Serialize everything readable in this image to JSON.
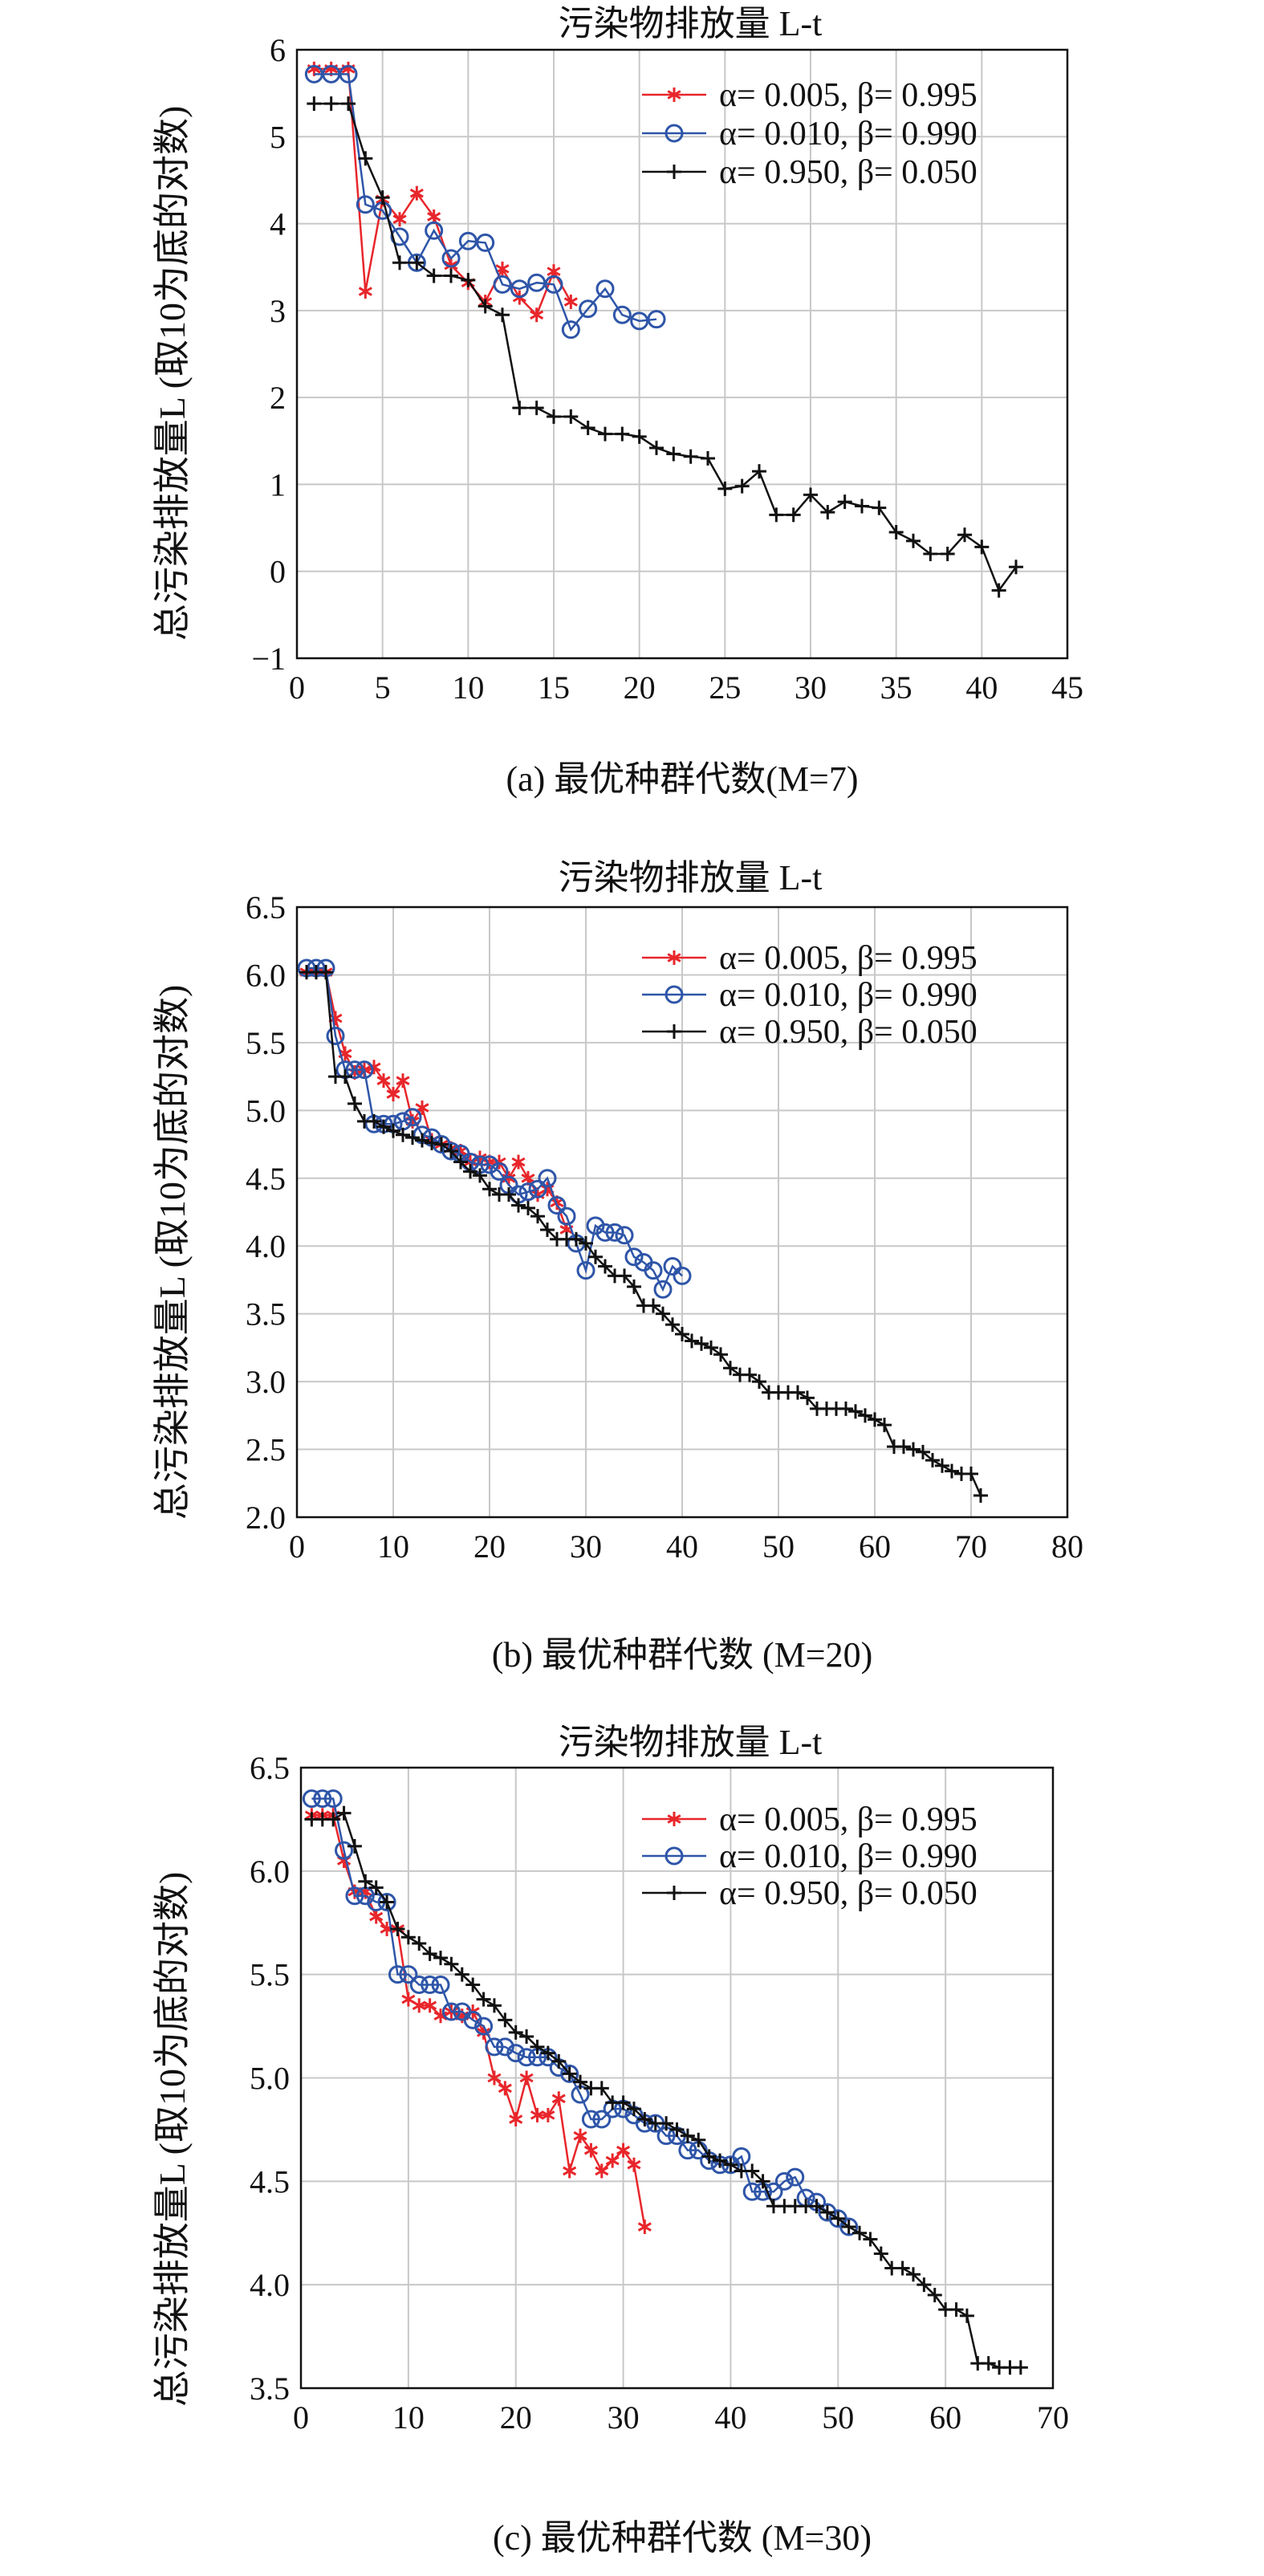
{
  "chart_data": [
    {
      "type": "line",
      "title": "污染物排放量 L-t",
      "caption": "(a) 最优种群代数(M=7)",
      "ylabel": "总污染排放量L (取10为底的对数)",
      "xlim": [
        0,
        45
      ],
      "ylim": [
        -1,
        6
      ],
      "xticks": [
        0,
        5,
        10,
        15,
        20,
        25,
        30,
        35,
        40,
        45
      ],
      "yticks": [
        -1,
        0,
        1,
        2,
        3,
        4,
        5,
        6
      ],
      "xtick_labels": [
        "0",
        "5",
        "10",
        "15",
        "20",
        "25",
        "30",
        "35",
        "40",
        "45"
      ],
      "ytick_labels": [
        "−1",
        "0",
        "1",
        "2",
        "3",
        "4",
        "5",
        "6"
      ],
      "series": [
        {
          "name": "α= 0.005, β= 0.995",
          "label": "α= 0.005, β= 0.995",
          "color": "#e8262b",
          "marker": "star",
          "x": [
            1,
            2,
            3,
            4,
            5,
            6,
            7,
            8,
            9,
            10,
            11,
            12,
            13,
            14,
            15,
            16
          ],
          "y": [
            5.78,
            5.78,
            5.78,
            3.22,
            4.28,
            4.05,
            4.35,
            4.08,
            3.52,
            3.32,
            3.1,
            3.48,
            3.15,
            2.95,
            3.45,
            3.1
          ]
        },
        {
          "name": "α= 0.010, β= 0.990",
          "label": "α= 0.010, β= 0.990",
          "color": "#2e55a8",
          "marker": "circle",
          "x": [
            1,
            2,
            3,
            4,
            5,
            6,
            7,
            8,
            9,
            10,
            11,
            12,
            13,
            14,
            15,
            16,
            17,
            18,
            19,
            20,
            21
          ],
          "y": [
            5.72,
            5.72,
            5.72,
            4.22,
            4.15,
            3.85,
            3.55,
            3.92,
            3.6,
            3.8,
            3.78,
            3.3,
            3.25,
            3.32,
            3.3,
            2.78,
            3.02,
            3.25,
            2.95,
            2.88,
            2.9
          ]
        },
        {
          "name": "α= 0.950, β= 0.050",
          "label": "α= 0.950, β= 0.050",
          "color": "#111111",
          "marker": "plus",
          "x": [
            1,
            2,
            3,
            4,
            5,
            6,
            7,
            8,
            9,
            10,
            11,
            12,
            13,
            14,
            15,
            16,
            17,
            18,
            19,
            20,
            21,
            22,
            23,
            24,
            25,
            26,
            27,
            28,
            29,
            30,
            31,
            32,
            33,
            34,
            35,
            36,
            37,
            38,
            39,
            40,
            41,
            42
          ],
          "y": [
            5.38,
            5.38,
            5.38,
            4.75,
            4.3,
            3.55,
            3.55,
            3.4,
            3.4,
            3.35,
            3.05,
            2.95,
            1.88,
            1.88,
            1.78,
            1.78,
            1.65,
            1.58,
            1.58,
            1.55,
            1.42,
            1.35,
            1.32,
            1.3,
            0.95,
            0.98,
            1.15,
            0.65,
            0.65,
            0.88,
            0.68,
            0.8,
            0.75,
            0.73,
            0.45,
            0.35,
            0.2,
            0.2,
            0.42,
            0.28,
            -0.22,
            0.05
          ]
        }
      ]
    },
    {
      "type": "line",
      "title": "污染物排放量 L-t",
      "caption": "(b) 最优种群代数 (M=20)",
      "ylabel": "总污染排放量L (取10为底的对数)",
      "xlim": [
        0,
        80
      ],
      "ylim": [
        2,
        6.5
      ],
      "xticks": [
        0,
        10,
        20,
        30,
        40,
        50,
        60,
        70,
        80
      ],
      "yticks": [
        2,
        2.5,
        3,
        3.5,
        4,
        4.5,
        5,
        5.5,
        6,
        6.5
      ],
      "xtick_labels": [
        "0",
        "10",
        "20",
        "30",
        "40",
        "50",
        "60",
        "70",
        "80"
      ],
      "ytick_labels": [
        "2.0",
        "2.5",
        "3.0",
        "3.5",
        "4.0",
        "4.5",
        "5.0",
        "5.5",
        "6.0",
        "6.5"
      ],
      "series": [
        {
          "name": "α= 0.005, β= 0.995",
          "label": "α= 0.005, β= 0.995",
          "color": "#e8262b",
          "marker": "star",
          "x": [
            1,
            2,
            3,
            4,
            5,
            6,
            7,
            8,
            9,
            10,
            11,
            12,
            13,
            14,
            15,
            16,
            17,
            18,
            19,
            20,
            21,
            22,
            23,
            24,
            25,
            26,
            27,
            28
          ],
          "y": [
            6.02,
            6.02,
            6.02,
            5.68,
            5.42,
            5.28,
            5.3,
            5.32,
            5.22,
            5.12,
            5.22,
            4.92,
            5.02,
            4.78,
            4.75,
            4.72,
            4.7,
            4.62,
            4.65,
            4.62,
            4.62,
            4.5,
            4.62,
            4.5,
            4.38,
            4.42,
            4.32,
            4.12
          ]
        },
        {
          "name": "α= 0.010, β= 0.990",
          "label": "α= 0.010, β= 0.990",
          "color": "#2e55a8",
          "marker": "circle",
          "x": [
            1,
            2,
            3,
            4,
            5,
            6,
            7,
            8,
            9,
            10,
            11,
            12,
            13,
            14,
            15,
            16,
            17,
            18,
            19,
            20,
            21,
            22,
            23,
            24,
            25,
            26,
            27,
            28,
            29,
            30,
            31,
            32,
            33,
            34,
            35,
            36,
            37,
            38,
            39,
            40
          ],
          "y": [
            6.05,
            6.05,
            6.05,
            5.55,
            5.3,
            5.3,
            5.3,
            4.9,
            4.9,
            4.9,
            4.92,
            4.95,
            4.82,
            4.8,
            4.75,
            4.7,
            4.68,
            4.62,
            4.6,
            4.6,
            4.55,
            4.45,
            4.38,
            4.4,
            4.42,
            4.5,
            4.3,
            4.22,
            4.02,
            3.82,
            4.15,
            4.1,
            4.1,
            4.08,
            3.92,
            3.88,
            3.82,
            3.68,
            3.85,
            3.78
          ]
        },
        {
          "name": "α= 0.950, β= 0.050",
          "label": "α= 0.950, β= 0.050",
          "color": "#111111",
          "marker": "plus",
          "x": [
            1,
            2,
            3,
            4,
            5,
            6,
            7,
            8,
            9,
            10,
            11,
            12,
            13,
            14,
            15,
            16,
            17,
            18,
            19,
            20,
            21,
            22,
            23,
            24,
            25,
            26,
            27,
            28,
            29,
            30,
            31,
            32,
            33,
            34,
            35,
            36,
            37,
            38,
            39,
            40,
            41,
            42,
            43,
            44,
            45,
            46,
            47,
            48,
            49,
            50,
            51,
            52,
            53,
            54,
            55,
            56,
            57,
            58,
            59,
            60,
            61,
            62,
            63,
            64,
            65,
            66,
            67,
            68,
            69,
            70,
            71
          ],
          "y": [
            6.02,
            6.02,
            6.02,
            5.25,
            5.25,
            5.05,
            4.92,
            4.92,
            4.88,
            4.85,
            4.82,
            4.8,
            4.78,
            4.76,
            4.75,
            4.7,
            4.62,
            4.55,
            4.52,
            4.42,
            4.38,
            4.38,
            4.3,
            4.28,
            4.22,
            4.12,
            4.05,
            4.05,
            4.05,
            4.02,
            3.92,
            3.85,
            3.78,
            3.78,
            3.7,
            3.56,
            3.56,
            3.5,
            3.42,
            3.35,
            3.3,
            3.28,
            3.25,
            3.2,
            3.1,
            3.05,
            3.05,
            3.0,
            2.92,
            2.92,
            2.92,
            2.92,
            2.88,
            2.8,
            2.8,
            2.8,
            2.8,
            2.78,
            2.75,
            2.72,
            2.68,
            2.52,
            2.52,
            2.5,
            2.48,
            2.42,
            2.38,
            2.34,
            2.32,
            2.32,
            2.16
          ]
        }
      ]
    },
    {
      "type": "line",
      "title": "污染物排放量 L-t",
      "caption": "(c) 最优种群代数 (M=30)",
      "ylabel": "总污染排放量L (取10为底的对数)",
      "xlim": [
        0,
        70
      ],
      "ylim": [
        3.5,
        6.5
      ],
      "xticks": [
        0,
        10,
        20,
        30,
        40,
        50,
        60,
        70
      ],
      "yticks": [
        3.5,
        4,
        4.5,
        5,
        5.5,
        6,
        6.5
      ],
      "xtick_labels": [
        "0",
        "10",
        "20",
        "30",
        "40",
        "50",
        "60",
        "70"
      ],
      "ytick_labels": [
        "3.5",
        "4.0",
        "4.5",
        "5.0",
        "5.5",
        "6.0",
        "6.5"
      ],
      "series": [
        {
          "name": "α= 0.005, β= 0.995",
          "label": "α= 0.005, β= 0.995",
          "color": "#e8262b",
          "marker": "star",
          "x": [
            1,
            2,
            3,
            4,
            5,
            6,
            7,
            8,
            9,
            10,
            11,
            12,
            13,
            14,
            15,
            16,
            17,
            18,
            19,
            20,
            21,
            22,
            23,
            24,
            25,
            26,
            27,
            28,
            29,
            30,
            31,
            32
          ],
          "y": [
            6.27,
            6.27,
            6.27,
            6.05,
            5.9,
            5.9,
            5.78,
            5.72,
            5.72,
            5.38,
            5.35,
            5.35,
            5.3,
            5.32,
            5.3,
            5.32,
            5.22,
            5.0,
            4.95,
            4.8,
            5.0,
            4.82,
            4.82,
            4.9,
            4.55,
            4.72,
            4.65,
            4.55,
            4.6,
            4.65,
            4.58,
            4.28
          ]
        },
        {
          "name": "α= 0.010, β= 0.990",
          "label": "α= 0.010, β= 0.990",
          "color": "#2e55a8",
          "marker": "circle",
          "x": [
            1,
            2,
            3,
            4,
            5,
            6,
            7,
            8,
            9,
            10,
            11,
            12,
            13,
            14,
            15,
            16,
            17,
            18,
            19,
            20,
            21,
            22,
            23,
            24,
            25,
            26,
            27,
            28,
            29,
            30,
            31,
            32,
            33,
            34,
            35,
            36,
            37,
            38,
            39,
            40,
            41,
            42,
            43,
            44,
            45,
            46,
            47,
            48,
            49,
            50,
            51
          ],
          "y": [
            6.35,
            6.35,
            6.35,
            6.1,
            5.88,
            5.88,
            5.85,
            5.85,
            5.5,
            5.5,
            5.45,
            5.45,
            5.45,
            5.32,
            5.32,
            5.28,
            5.25,
            5.15,
            5.15,
            5.12,
            5.1,
            5.1,
            5.1,
            5.05,
            5.02,
            4.92,
            4.8,
            4.8,
            4.85,
            4.85,
            4.82,
            4.78,
            4.78,
            4.72,
            4.72,
            4.65,
            4.65,
            4.6,
            4.58,
            4.58,
            4.62,
            4.45,
            4.45,
            4.45,
            4.5,
            4.52,
            4.42,
            4.4,
            4.35,
            4.32,
            4.28
          ]
        },
        {
          "name": "α= 0.950, β= 0.050",
          "label": "α= 0.950, β= 0.050",
          "color": "#111111",
          "marker": "plus",
          "x": [
            1,
            2,
            3,
            4,
            5,
            6,
            7,
            8,
            9,
            10,
            11,
            12,
            13,
            14,
            15,
            16,
            17,
            18,
            19,
            20,
            21,
            22,
            23,
            24,
            25,
            26,
            27,
            28,
            29,
            30,
            31,
            32,
            33,
            34,
            35,
            36,
            37,
            38,
            39,
            40,
            41,
            42,
            43,
            44,
            45,
            46,
            47,
            48,
            49,
            50,
            51,
            52,
            53,
            54,
            55,
            56,
            57,
            58,
            59,
            60,
            61,
            62,
            63,
            64,
            65,
            66,
            67
          ],
          "y": [
            6.25,
            6.25,
            6.25,
            6.28,
            6.12,
            5.95,
            5.92,
            5.85,
            5.72,
            5.68,
            5.65,
            5.6,
            5.58,
            5.55,
            5.5,
            5.45,
            5.38,
            5.35,
            5.28,
            5.22,
            5.2,
            5.15,
            5.12,
            5.08,
            5.02,
            4.98,
            4.95,
            4.95,
            4.88,
            4.88,
            4.85,
            4.8,
            4.78,
            4.78,
            4.75,
            4.72,
            4.7,
            4.62,
            4.6,
            4.58,
            4.55,
            4.55,
            4.5,
            4.38,
            4.38,
            4.38,
            4.38,
            4.38,
            4.35,
            4.32,
            4.28,
            4.25,
            4.22,
            4.15,
            4.08,
            4.08,
            4.05,
            4.0,
            3.95,
            3.88,
            3.88,
            3.85,
            3.62,
            3.62,
            3.6,
            3.6,
            3.6
          ]
        }
      ]
    }
  ]
}
